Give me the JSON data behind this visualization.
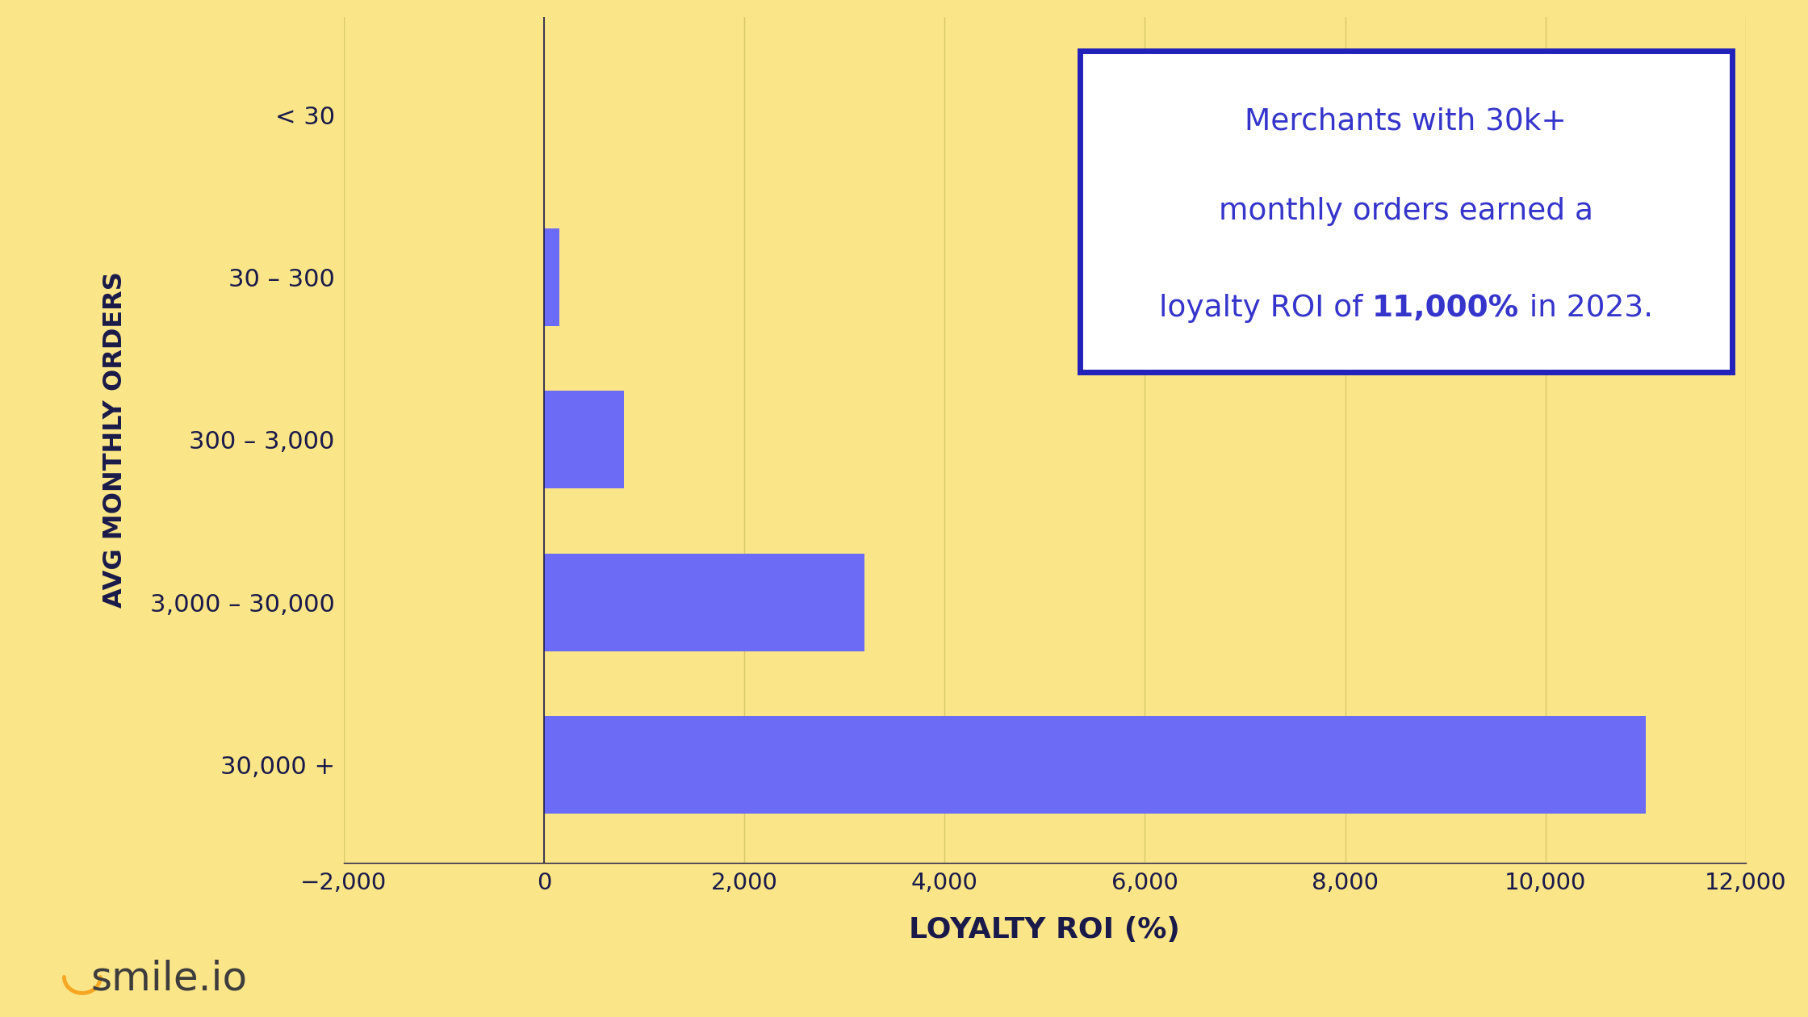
{
  "categories": [
    "30,000 +",
    "3,000 – 30,000",
    "300 – 3,000",
    "30 – 300",
    "< 30"
  ],
  "values": [
    11000,
    3200,
    800,
    150,
    0
  ],
  "bar_color": "#6B6BF5",
  "background_color": "#FAE588",
  "xlabel": "LOYALTY ROI (%)",
  "ylabel": "AVG MONTHLY ORDERS",
  "xlim": [
    -2000,
    12000
  ],
  "xticks": [
    -2000,
    0,
    2000,
    4000,
    6000,
    8000,
    10000,
    12000
  ],
  "xtick_labels": [
    "−2,000",
    "0",
    "2,000",
    "4,000",
    "6,000",
    "8,000",
    "10,000",
    "12,000"
  ],
  "annotation_color": "#3535CC",
  "annotation_box_color": "#2222BB",
  "annotation_bg": "#FFFFFF",
  "axis_color": "#1a1a4a",
  "tick_color": "#1a1a4a",
  "ylabel_color": "#1a1a4a",
  "xlabel_color": "#1a1a4a",
  "smile_logo_color": "#3d3d3d",
  "smile_u_color": "#F5A623",
  "grid_color": "#D9C96A",
  "line1": "Merchants with 30k+",
  "line2": "monthly orders earned a",
  "line3a": "loyalty ROI of ",
  "line3b": "11,000%",
  "line3c": " in 2023."
}
